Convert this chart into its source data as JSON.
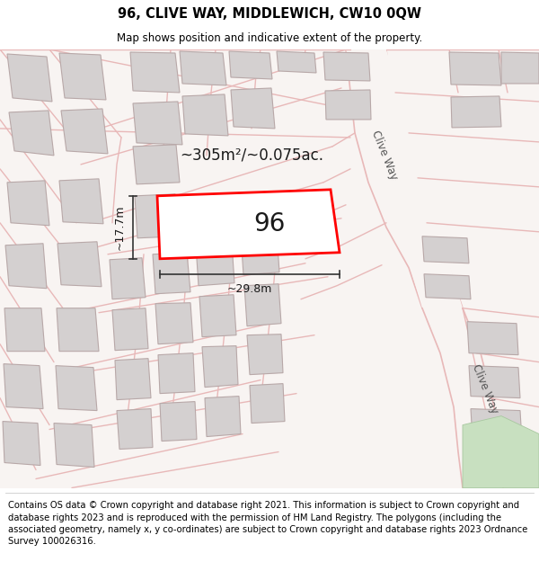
{
  "title": "96, CLIVE WAY, MIDDLEWICH, CW10 0QW",
  "subtitle": "Map shows position and indicative extent of the property.",
  "footer": "Contains OS data © Crown copyright and database right 2021. This information is subject to Crown copyright and database rights 2023 and is reproduced with the permission of HM Land Registry. The polygons (including the associated geometry, namely x, y co-ordinates) are subject to Crown copyright and database rights 2023 Ordnance Survey 100026316.",
  "highlight_color": "#ff0000",
  "building_fill": "#d4d0d0",
  "building_edge": "#b8a8a8",
  "road_color": "#e8b8b8",
  "map_bg": "#f8f4f4",
  "area_text": "~305m²/~0.075ac.",
  "label_96": "96",
  "dim_width": "~29.8m",
  "dim_height": "~17.7m",
  "clive_way_label": "Clive Way",
  "title_fontsize": 10.5,
  "subtitle_fontsize": 8.5,
  "footer_fontsize": 7.2
}
